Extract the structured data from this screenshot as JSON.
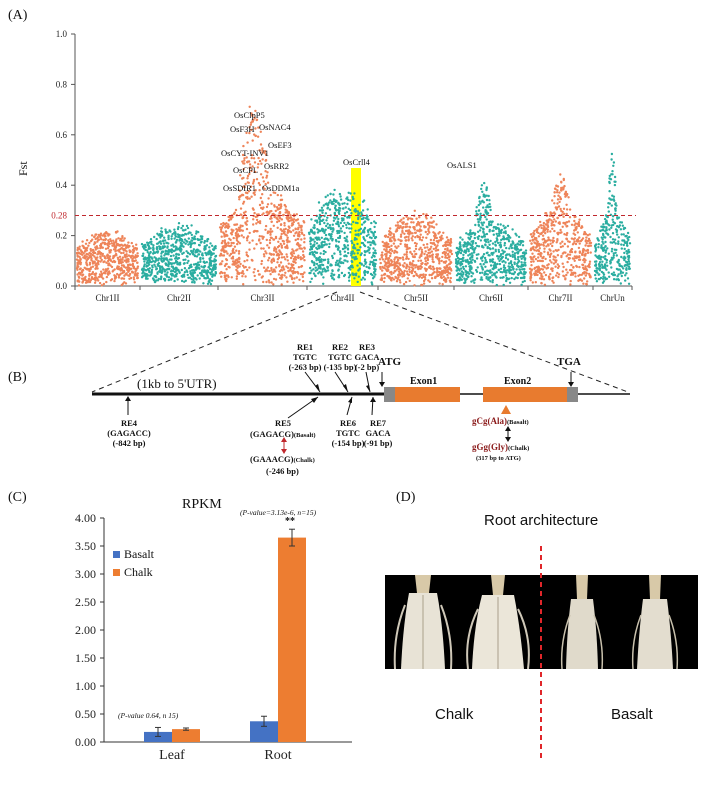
{
  "panelA": {
    "label": "(A)",
    "ylabel": "Fst",
    "yticks": [
      "1.0",
      "0.8",
      "0.6",
      "0.4",
      "0.2",
      "0.0"
    ],
    "threshold_label": "0.28",
    "threshold_value": 0.28,
    "chromosomes": [
      "Chr1II",
      "Chr2II",
      "Chr3II",
      "Chr4II",
      "Chr5II",
      "Chr6II",
      "Chr7II",
      "ChrUn"
    ],
    "genes": [
      "OsClpP5",
      "OsF3H",
      "OsNAC4",
      "OsEF3",
      "OsCYT-INV1",
      "OsRR2",
      "OsCPL",
      "OsSDIR1",
      "OsDDM1a",
      "OsCrll4",
      "OsALS1"
    ],
    "colors": {
      "orange": "#EE8459",
      "teal": "#2AADA0",
      "threshold": "#C0282D",
      "highlight": "#FFFF00"
    }
  },
  "panelB": {
    "label": "(B)",
    "promoter": "(1kb to 5'UTR)",
    "atg": "ATG",
    "tga": "TGA",
    "exon1": "Exon1",
    "exon2": "Exon2",
    "re1": {
      "name": "RE1",
      "seq": "TGTC",
      "pos": "(-263 bp)"
    },
    "re2": {
      "name": "RE2",
      "seq": "TGTC",
      "pos": "(-135 bp)"
    },
    "re3": {
      "name": "RE3",
      "seq": "GACA",
      "pos": "(-2 bp)"
    },
    "re4": {
      "name": "RE4",
      "seq": "(GAGACC)",
      "pos": "(-842 bp)"
    },
    "re5": {
      "name": "RE5",
      "basalt": "(GAGACG)",
      "basalt_tag": "(Basalt)",
      "chalk": "(GAAACG)",
      "chalk_tag": "(Chalk)",
      "pos": "(-246 bp)"
    },
    "re6": {
      "name": "RE6",
      "seq": "TGTC",
      "pos": "(-154 bp)"
    },
    "re7": {
      "name": "RE7",
      "seq": "GACA",
      "pos": "(-91 bp)"
    },
    "snp_basalt": "gCg(Ala)",
    "snp_basalt_tag": "(Basalt)",
    "snp_chalk": "gGg(Gly)",
    "snp_chalk_tag": "(Chalk)",
    "snp_pos": "(317 bp to ATG)"
  },
  "panelC": {
    "label": "(C)",
    "chart_data": {
      "type": "bar",
      "title": "RPKM",
      "categories": [
        "Leaf",
        "Root"
      ],
      "series": [
        {
          "name": "Basalt",
          "values": [
            0.18,
            0.37
          ],
          "errors": [
            0.08,
            0.09
          ]
        },
        {
          "name": "Chalk",
          "values": [
            0.23,
            3.65
          ],
          "errors": [
            0.02,
            0.15
          ]
        }
      ],
      "ylim": [
        0,
        4
      ],
      "yticks": [
        "0.00",
        "0.50",
        "1.00",
        "1.50",
        "2.00",
        "2.50",
        "3.00",
        "3.50",
        "4.00"
      ],
      "annotations": {
        "leaf": "(P-value 0.64, n 15)",
        "root": "(P-value=3.13e-6, n=15)",
        "sig": "**"
      },
      "colors": {
        "Basalt": "#4472C4",
        "Chalk": "#ED7D31"
      }
    }
  },
  "panelD": {
    "label": "(D)",
    "title": "Root architecture",
    "left_label": "Chalk",
    "right_label": "Basalt"
  }
}
